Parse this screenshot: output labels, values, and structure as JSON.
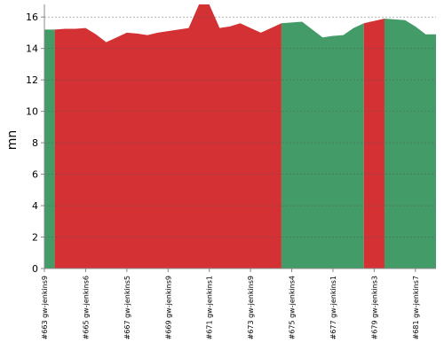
{
  "chart_data": {
    "type": "area",
    "ylabel": "mn",
    "ylim": [
      0,
      16.8
    ],
    "yticks": [
      0,
      2,
      4,
      6,
      8,
      10,
      12,
      14,
      16
    ],
    "reference_line": 16,
    "grid": true,
    "x": [
      0,
      0.5,
      1,
      1.5,
      2,
      2.5,
      3,
      3.5,
      4,
      4.5,
      5,
      5.5,
      6,
      6.5,
      7,
      7.5,
      8,
      8.5,
      9,
      9.5,
      10,
      10.5,
      11,
      11.5,
      12,
      12.5,
      13,
      13.5,
      14,
      14.5,
      15,
      15.5,
      16,
      16.5,
      17,
      17.5,
      18,
      18.5,
      19
    ],
    "values": [
      15.2,
      15.2,
      15.25,
      15.25,
      15.3,
      14.9,
      14.4,
      14.7,
      15.0,
      14.95,
      14.85,
      15.0,
      15.1,
      15.2,
      15.3,
      16.8,
      16.8,
      15.3,
      15.4,
      15.6,
      15.3,
      15.0,
      15.3,
      15.6,
      15.65,
      15.7,
      15.2,
      14.7,
      14.8,
      14.85,
      15.3,
      15.6,
      15.75,
      15.9,
      15.85,
      15.8,
      15.4,
      14.9,
      14.9
    ],
    "segments": [
      {
        "status": "success",
        "start": 0,
        "end": 0.5
      },
      {
        "status": "failure",
        "start": 0.5,
        "end": 11.5
      },
      {
        "status": "success",
        "start": 11.5,
        "end": 15.5
      },
      {
        "status": "failure",
        "start": 15.5,
        "end": 16.5
      },
      {
        "status": "success",
        "start": 16.5,
        "end": 19
      }
    ],
    "categories": [
      "#663 gw-jenkins9",
      "#665 gw-jenkins6",
      "#667 gw-jenkins5",
      "#669 gw-jenkins9",
      "#671 gw-jenkins1",
      "#673 gw-jenkins9",
      "#675 gw-jenkins4",
      "#677 gw-jenkins1",
      "#679 gw-jenkins3",
      "#681 gw-jenkins7"
    ],
    "category_x": [
      0,
      2,
      4,
      6,
      8,
      10,
      12,
      14,
      16,
      18
    ],
    "colors": {
      "success": "#439b67",
      "failure": "#d33133",
      "grid": "#555555"
    }
  }
}
